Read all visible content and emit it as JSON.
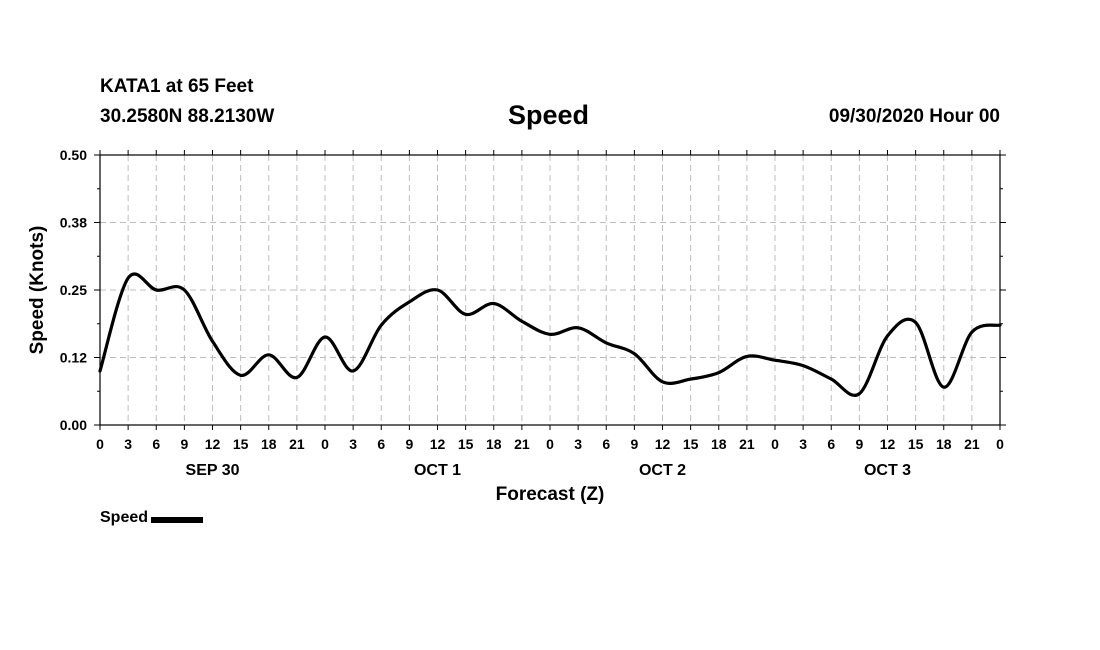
{
  "header": {
    "station": "KATA1 at 65 Feet",
    "coords": "30.2580N 88.2130W",
    "title": "Speed",
    "datestamp": "09/30/2020 Hour 00"
  },
  "legend": {
    "label": "Speed",
    "color": "#000000"
  },
  "chart_data": {
    "type": "line",
    "title": "Speed",
    "xlabel": "Forecast (Z)",
    "ylabel": "Speed (Knots)",
    "ylim": [
      0,
      0.5
    ],
    "yticks": [
      "0.00",
      "0.12",
      "0.25",
      "0.38",
      "0.50"
    ],
    "xlim": [
      0,
      96
    ],
    "xtick_labels": [
      "0",
      "3",
      "6",
      "9",
      "12",
      "15",
      "18",
      "21",
      "0",
      "3",
      "6",
      "9",
      "12",
      "15",
      "18",
      "21",
      "0",
      "3",
      "6",
      "9",
      "12",
      "15",
      "18",
      "21",
      "0",
      "3",
      "6",
      "9",
      "12",
      "15",
      "18",
      "21",
      "0"
    ],
    "day_labels": [
      {
        "label": "SEP 30",
        "hour": 12
      },
      {
        "label": "OCT 1",
        "hour": 36
      },
      {
        "label": "OCT 2",
        "hour": 60
      },
      {
        "label": "OCT 3",
        "hour": 84
      }
    ],
    "grid": true,
    "legend_position": "bottom-left",
    "series": [
      {
        "name": "Speed",
        "color": "#000000",
        "x": [
          0,
          3,
          6,
          9,
          12,
          15,
          18,
          21,
          24,
          27,
          30,
          33,
          36,
          39,
          42,
          45,
          48,
          51,
          54,
          57,
          60,
          63,
          66,
          69,
          72,
          75,
          78,
          81,
          84,
          87,
          90,
          93,
          96
        ],
        "values": [
          0.1,
          0.272,
          0.25,
          0.25,
          0.155,
          0.092,
          0.13,
          0.088,
          0.163,
          0.1,
          0.185,
          0.228,
          0.25,
          0.205,
          0.225,
          0.192,
          0.168,
          0.18,
          0.152,
          0.132,
          0.08,
          0.085,
          0.097,
          0.127,
          0.12,
          0.11,
          0.085,
          0.058,
          0.165,
          0.19,
          0.07,
          0.172,
          0.185
        ]
      }
    ]
  }
}
